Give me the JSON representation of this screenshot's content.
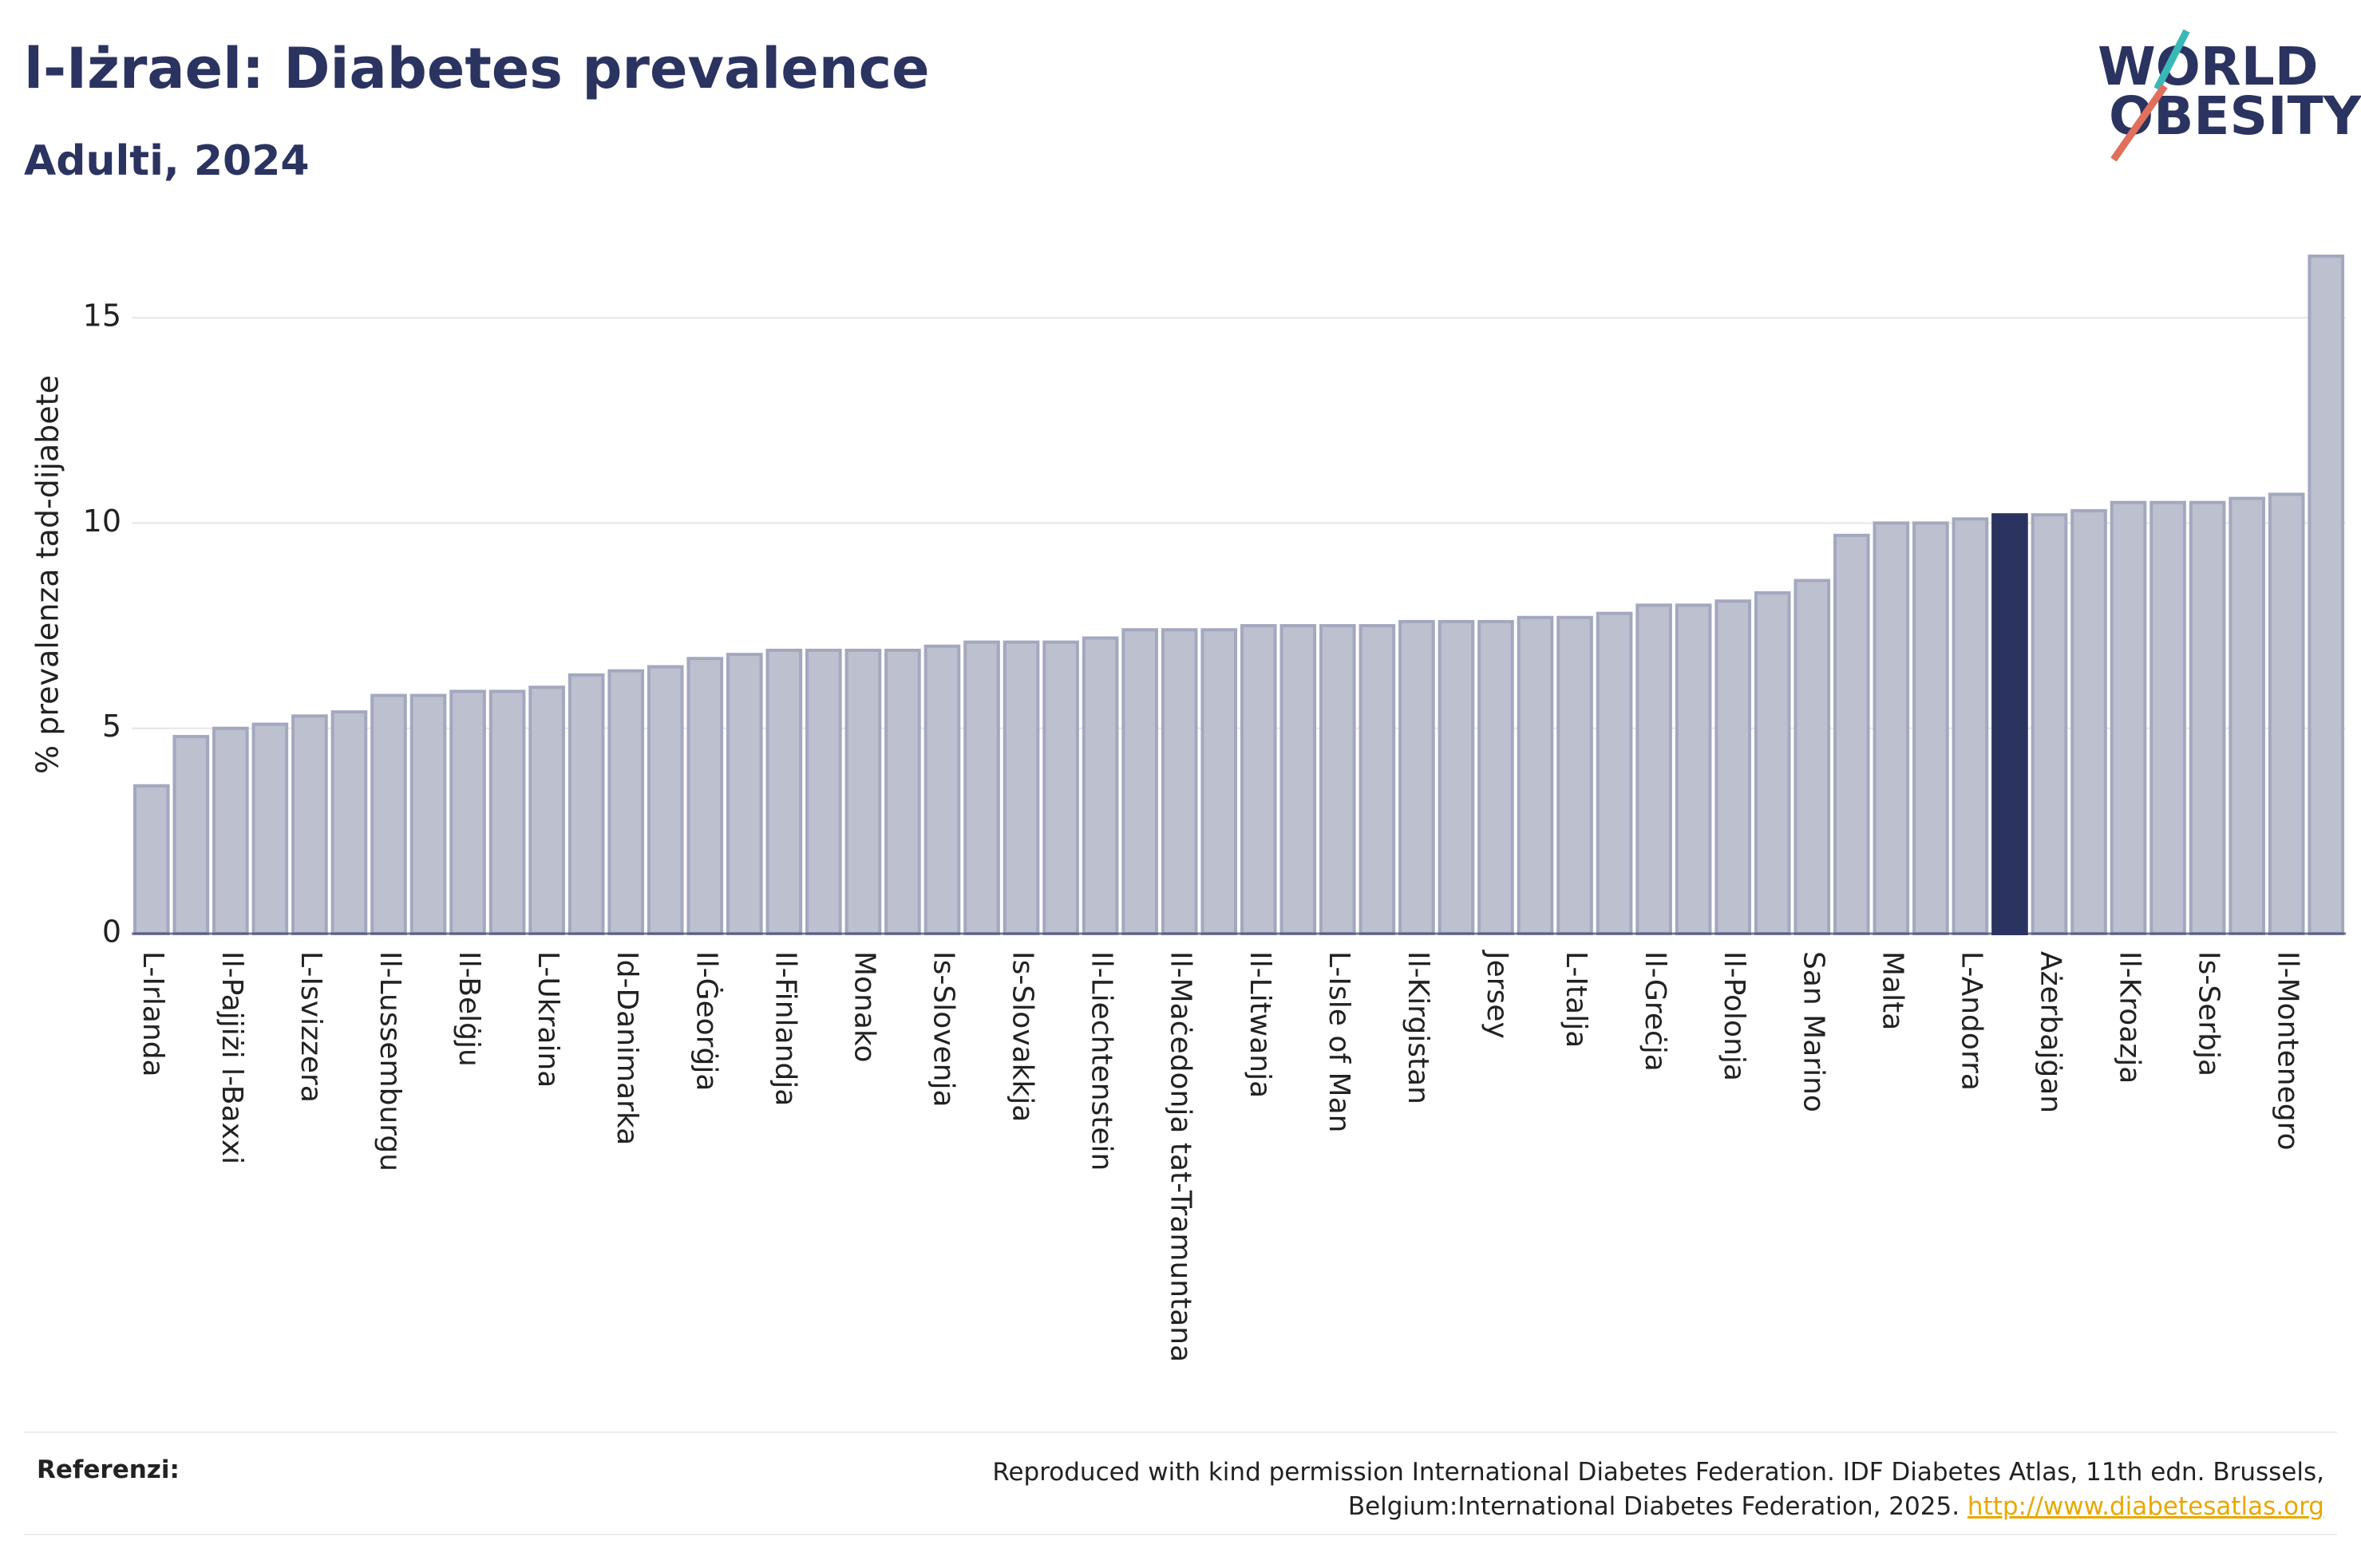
{
  "chart_data": {
    "type": "bar",
    "title": "l-Iżrael: Diabetes prevalence",
    "subtitle": "Adulti, 2024",
    "y_label": "% prevalenza tad-dijabete",
    "logo": [
      "WORLD",
      "OBESITY"
    ],
    "categories": [
      "L-Irlanda",
      null,
      "Il-Pajjiżi l-Baxxi",
      null,
      "L-Isvizzera",
      null,
      "Il-Lussemburgu",
      null,
      "Il-Belġju",
      null,
      "L-Ukraina",
      null,
      "Id-Danimarka",
      null,
      "Il-Ġeorġja",
      null,
      "Il-Finlandja",
      null,
      "Monako",
      null,
      "Is-Slovenja",
      null,
      "Is-Slovakkja",
      null,
      "Il-Liechtenstein",
      null,
      "Il-Maċedonja tat-Tramuntana",
      null,
      "Il-Litwanja",
      null,
      "L-Isle of Man",
      null,
      "Il-Kirgistan",
      null,
      "Jersey",
      null,
      "L-Italja",
      null,
      "Il-Greċja",
      null,
      "Il-Polonja",
      null,
      "San Marino",
      null,
      "Malta",
      null,
      "L-Andorra",
      null,
      "Ażerbajġan",
      null,
      "Il-Kroazja",
      null,
      "Is-Serbja",
      null,
      "Il-Montenegro",
      null
    ],
    "values": [
      3.6,
      4.8,
      5.0,
      5.1,
      5.3,
      5.4,
      5.8,
      5.8,
      5.9,
      5.9,
      6.0,
      6.3,
      6.4,
      6.5,
      6.7,
      6.8,
      6.9,
      6.9,
      6.9,
      6.9,
      7.0,
      7.1,
      7.1,
      7.1,
      7.2,
      7.4,
      7.4,
      7.4,
      7.5,
      7.5,
      7.5,
      7.5,
      7.6,
      7.6,
      7.6,
      7.7,
      7.7,
      7.8,
      8.0,
      8.0,
      8.1,
      8.3,
      8.6,
      9.7,
      10.0,
      10.0,
      10.1,
      10.2,
      10.2,
      10.3,
      10.5,
      10.5,
      10.5,
      10.6,
      10.7,
      16.5
    ],
    "colors": [
      "#bcc0cf",
      "#bcc0cf",
      "#bcc0cf",
      "#bcc0cf",
      "#bcc0cf",
      "#bcc0cf",
      "#bcc0cf",
      "#bcc0cf",
      "#bcc0cf",
      "#bcc0cf",
      "#bcc0cf",
      "#bcc0cf",
      "#bcc0cf",
      "#bcc0cf",
      "#bcc0cf",
      "#bcc0cf",
      "#bcc0cf",
      "#bcc0cf",
      "#bcc0cf",
      "#bcc0cf",
      "#bcc0cf",
      "#bcc0cf",
      "#bcc0cf",
      "#bcc0cf",
      "#bcc0cf",
      "#bcc0cf",
      "#bcc0cf",
      "#bcc0cf",
      "#bcc0cf",
      "#bcc0cf",
      "#bcc0cf",
      "#bcc0cf",
      "#bcc0cf",
      "#bcc0cf",
      "#bcc0cf",
      "#bcc0cf",
      "#bcc0cf",
      "#bcc0cf",
      "#bcc0cf",
      "#bcc0cf",
      "#bcc0cf",
      "#bcc0cf",
      "#bcc0cf",
      "#bcc0cf",
      "#bcc0cf",
      "#bcc0cf",
      "#bcc0cf",
      "#2b3360",
      "#bcc0cf",
      "#bcc0cf",
      "#bcc0cf",
      "#bcc0cf",
      "#bcc0cf",
      "#bcc0cf",
      "#bcc0cf",
      "#bcc0cf"
    ],
    "ylim": [
      0,
      17.2
    ],
    "yticks": [
      0,
      5,
      10,
      15
    ],
    "grid": true,
    "references_label": "Referenzi:",
    "source": "Reproduced with kind permission International Diabetes Federation. IDF Diabetes Atlas, 11th edn. Brussels, Belgium:International Diabetes Federation, 2025.",
    "source_link": "http://www.diabetesatlas.org"
  }
}
